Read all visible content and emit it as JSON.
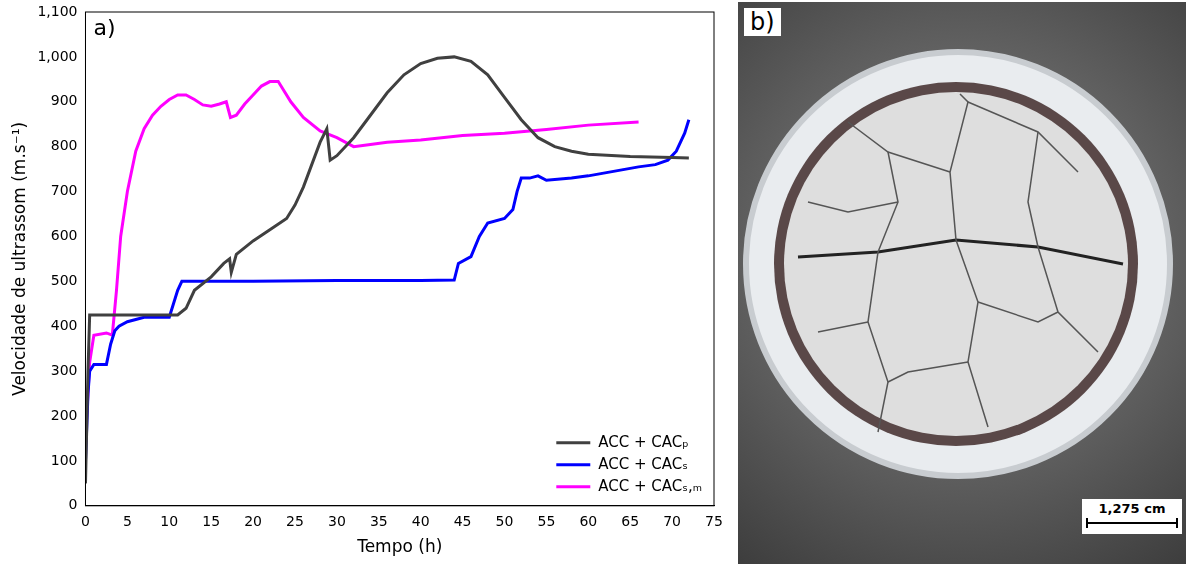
{
  "chart_data": {
    "type": "line",
    "panel_label": "a)",
    "x_label": "Tempo (h)",
    "y_label": "Velocidade de ultrassom (m.s⁻¹)",
    "xlim": [
      0,
      75
    ],
    "xticks": [
      0,
      5,
      10,
      15,
      20,
      25,
      30,
      35,
      40,
      45,
      50,
      55,
      60,
      65,
      70,
      75
    ],
    "ylim": [
      0,
      1100
    ],
    "yticks": [
      0,
      100,
      200,
      300,
      400,
      500,
      600,
      700,
      800,
      900,
      1000,
      1100
    ],
    "grid": false,
    "legend": "lower right",
    "series": [
      {
        "name": "ACC + CACₚ",
        "color": "#404040",
        "x": [
          0,
          0.3,
          0.5,
          5,
          10,
          11,
          12,
          13,
          15,
          16.5,
          17.2,
          17.4,
          18,
          20,
          22,
          24,
          25,
          26,
          27,
          28,
          28.8,
          29.2,
          30,
          32,
          34,
          36,
          38,
          40,
          42,
          44,
          46,
          48,
          50,
          52,
          54,
          56,
          58,
          60,
          65,
          70,
          72
        ],
        "values": [
          50,
          300,
          425,
          425,
          425,
          425,
          440,
          480,
          510,
          540,
          550,
          520,
          560,
          590,
          615,
          640,
          670,
          710,
          760,
          810,
          840,
          770,
          780,
          820,
          870,
          920,
          960,
          985,
          997,
          1000,
          990,
          960,
          910,
          860,
          820,
          800,
          790,
          783,
          778,
          776,
          775
        ]
      },
      {
        "name": "ACC + CACₛ",
        "color": "#0000ff",
        "x": [
          0,
          0.3,
          0.5,
          1,
          2.5,
          3,
          3.5,
          4,
          5,
          6,
          7,
          9,
          10,
          10.5,
          11,
          11.5,
          12,
          20,
          30,
          40,
          44,
          44.5,
          46,
          47,
          48,
          50,
          51,
          51.5,
          52,
          53,
          54,
          55,
          58,
          60,
          63,
          66,
          68,
          69.5,
          70.5,
          71.5,
          72
        ],
        "values": [
          100,
          250,
          300,
          315,
          315,
          360,
          390,
          400,
          410,
          415,
          420,
          420,
          420,
          450,
          480,
          500,
          500,
          500,
          502,
          502,
          503,
          540,
          555,
          600,
          630,
          640,
          660,
          700,
          730,
          730,
          735,
          725,
          730,
          735,
          745,
          755,
          760,
          770,
          790,
          830,
          860
        ]
      },
      {
        "name": "ACC + CACₛ,ₘ",
        "color": "#ff00ff",
        "x": [
          0,
          0.5,
          1,
          2.5,
          3.2,
          3.7,
          4.2,
          5,
          6,
          7,
          8,
          9,
          10,
          11,
          12,
          13,
          14,
          15,
          16,
          16.8,
          17.3,
          18,
          19,
          20,
          21,
          22,
          23,
          23.5,
          24.5,
          26,
          28,
          30,
          32,
          34,
          36,
          40,
          45,
          50,
          55,
          60,
          66
        ],
        "values": [
          150,
          320,
          380,
          385,
          380,
          480,
          600,
          700,
          790,
          840,
          870,
          890,
          905,
          915,
          915,
          905,
          893,
          890,
          895,
          900,
          865,
          870,
          895,
          915,
          935,
          945,
          945,
          930,
          900,
          865,
          835,
          820,
          800,
          805,
          810,
          815,
          825,
          830,
          838,
          848,
          855
        ]
      }
    ]
  },
  "photo": {
    "panel_label": "b)",
    "scale_bar": "1,275 cm"
  }
}
